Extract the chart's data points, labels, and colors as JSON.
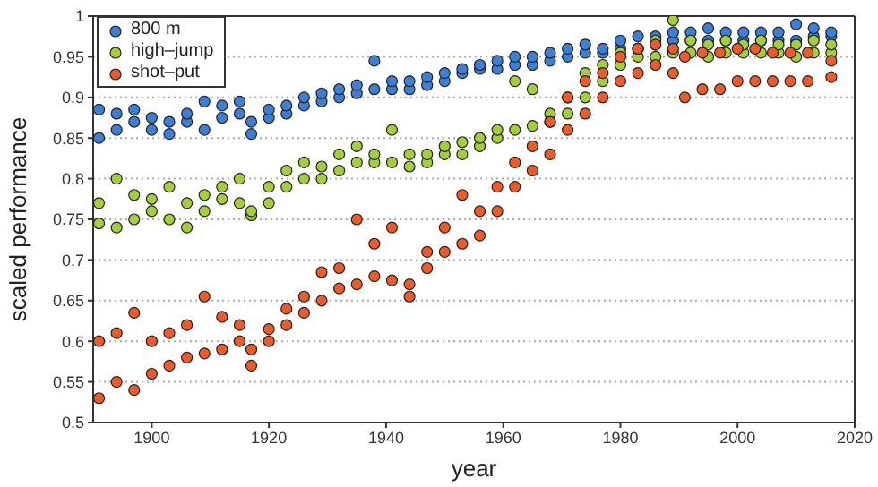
{
  "chart_data": {
    "type": "scatter",
    "xlabel": "year",
    "ylabel": "scaled performance",
    "xlim": [
      1890,
      2020
    ],
    "xticks": [
      1900,
      1920,
      1940,
      1960,
      1980,
      2000,
      2020
    ],
    "ylim": [
      0.5,
      1
    ],
    "yticks": [
      0.5,
      0.55,
      0.6,
      0.65,
      0.7,
      0.75,
      0.8,
      0.85,
      0.9,
      0.95,
      1
    ],
    "grid": "y",
    "legend": "top left",
    "marker": "circle",
    "series": [
      {
        "name": "800 m",
        "color": "#3d7fd6",
        "x": [
          1891,
          1891,
          1894,
          1894,
          1897,
          1897,
          1900,
          1900,
          1903,
          1903,
          1906,
          1906,
          1909,
          1909,
          1912,
          1912,
          1915,
          1915,
          1917,
          1917,
          1920,
          1920,
          1923,
          1923,
          1926,
          1926,
          1929,
          1929,
          1932,
          1932,
          1935,
          1935,
          1938,
          1938,
          1941,
          1941,
          1944,
          1944,
          1947,
          1947,
          1950,
          1950,
          1953,
          1953,
          1956,
          1956,
          1959,
          1959,
          1962,
          1962,
          1965,
          1965,
          1968,
          1968,
          1971,
          1971,
          1974,
          1974,
          1977,
          1977,
          1980,
          1980,
          1983,
          1983,
          1986,
          1986,
          1989,
          1989,
          1992,
          1992,
          1995,
          1995,
          1998,
          1998,
          2001,
          2001,
          2004,
          2004,
          2007,
          2007,
          2010,
          2010,
          2013,
          2013,
          2016,
          2016
        ],
        "values": [
          0.85,
          0.885,
          0.86,
          0.88,
          0.87,
          0.885,
          0.86,
          0.875,
          0.855,
          0.87,
          0.87,
          0.88,
          0.86,
          0.895,
          0.875,
          0.89,
          0.88,
          0.895,
          0.855,
          0.87,
          0.875,
          0.885,
          0.88,
          0.89,
          0.89,
          0.9,
          0.895,
          0.905,
          0.9,
          0.91,
          0.905,
          0.915,
          0.91,
          0.945,
          0.91,
          0.92,
          0.91,
          0.92,
          0.915,
          0.925,
          0.92,
          0.93,
          0.93,
          0.935,
          0.935,
          0.94,
          0.935,
          0.945,
          0.94,
          0.95,
          0.94,
          0.95,
          0.945,
          0.955,
          0.95,
          0.96,
          0.955,
          0.965,
          0.955,
          0.96,
          0.96,
          0.97,
          0.96,
          0.975,
          0.965,
          0.975,
          0.97,
          0.98,
          0.97,
          0.98,
          0.97,
          0.985,
          0.97,
          0.98,
          0.97,
          0.98,
          0.97,
          0.98,
          0.97,
          0.98,
          0.97,
          0.99,
          0.975,
          0.985,
          0.975,
          0.98
        ]
      },
      {
        "name": "high–jump",
        "color": "#a3cf3a",
        "x": [
          1891,
          1891,
          1894,
          1894,
          1897,
          1897,
          1900,
          1900,
          1903,
          1903,
          1906,
          1906,
          1909,
          1909,
          1912,
          1912,
          1915,
          1915,
          1917,
          1917,
          1920,
          1920,
          1923,
          1923,
          1926,
          1926,
          1929,
          1929,
          1932,
          1932,
          1935,
          1935,
          1938,
          1938,
          1941,
          1941,
          1944,
          1944,
          1947,
          1947,
          1950,
          1950,
          1953,
          1953,
          1956,
          1956,
          1959,
          1959,
          1962,
          1962,
          1965,
          1965,
          1968,
          1968,
          1971,
          1971,
          1974,
          1974,
          1977,
          1977,
          1980,
          1980,
          1983,
          1983,
          1986,
          1986,
          1989,
          1989,
          1992,
          1992,
          1995,
          1995,
          1998,
          1998,
          2001,
          2001,
          2004,
          2004,
          2007,
          2007,
          2010,
          2010,
          2013,
          2013,
          2016,
          2016
        ],
        "values": [
          0.745,
          0.77,
          0.74,
          0.8,
          0.75,
          0.78,
          0.76,
          0.775,
          0.75,
          0.79,
          0.74,
          0.77,
          0.76,
          0.78,
          0.775,
          0.79,
          0.77,
          0.8,
          0.755,
          0.76,
          0.77,
          0.79,
          0.79,
          0.81,
          0.8,
          0.82,
          0.8,
          0.815,
          0.81,
          0.83,
          0.82,
          0.84,
          0.82,
          0.83,
          0.82,
          0.86,
          0.815,
          0.83,
          0.82,
          0.83,
          0.83,
          0.84,
          0.83,
          0.845,
          0.84,
          0.85,
          0.85,
          0.86,
          0.86,
          0.92,
          0.865,
          0.91,
          0.87,
          0.88,
          0.88,
          0.9,
          0.9,
          0.93,
          0.92,
          0.94,
          0.94,
          0.955,
          0.95,
          0.96,
          0.95,
          0.97,
          0.955,
          0.995,
          0.955,
          0.97,
          0.95,
          0.965,
          0.955,
          0.97,
          0.955,
          0.965,
          0.955,
          0.97,
          0.955,
          0.965,
          0.95,
          0.965,
          0.955,
          0.97,
          0.955,
          0.965
        ]
      },
      {
        "name": "shot–put",
        "color": "#ef5a2a",
        "x": [
          1891,
          1891,
          1894,
          1894,
          1897,
          1897,
          1900,
          1900,
          1903,
          1903,
          1906,
          1906,
          1909,
          1909,
          1912,
          1912,
          1915,
          1915,
          1917,
          1917,
          1920,
          1920,
          1923,
          1923,
          1926,
          1926,
          1929,
          1929,
          1932,
          1932,
          1935,
          1935,
          1938,
          1938,
          1941,
          1941,
          1944,
          1944,
          1947,
          1947,
          1950,
          1950,
          1953,
          1953,
          1956,
          1956,
          1959,
          1959,
          1962,
          1962,
          1965,
          1965,
          1968,
          1968,
          1971,
          1971,
          1974,
          1974,
          1977,
          1977,
          1980,
          1980,
          1983,
          1983,
          1986,
          1986,
          1989,
          1989,
          1991,
          1991,
          1994,
          1994,
          1997,
          1997,
          2000,
          2000,
          2003,
          2003,
          2006,
          2006,
          2009,
          2009,
          2012,
          2012,
          2016,
          2016
        ],
        "values": [
          0.53,
          0.6,
          0.55,
          0.61,
          0.54,
          0.635,
          0.56,
          0.6,
          0.57,
          0.61,
          0.58,
          0.62,
          0.585,
          0.655,
          0.59,
          0.63,
          0.6,
          0.62,
          0.57,
          0.59,
          0.6,
          0.615,
          0.62,
          0.64,
          0.635,
          0.655,
          0.65,
          0.685,
          0.665,
          0.69,
          0.67,
          0.75,
          0.68,
          0.72,
          0.675,
          0.74,
          0.655,
          0.67,
          0.69,
          0.71,
          0.71,
          0.74,
          0.72,
          0.78,
          0.73,
          0.76,
          0.76,
          0.79,
          0.79,
          0.82,
          0.81,
          0.84,
          0.83,
          0.87,
          0.86,
          0.9,
          0.88,
          0.92,
          0.9,
          0.93,
          0.92,
          0.95,
          0.93,
          0.96,
          0.94,
          0.965,
          0.93,
          0.96,
          0.9,
          0.95,
          0.91,
          0.955,
          0.91,
          0.955,
          0.92,
          0.96,
          0.92,
          0.96,
          0.92,
          0.955,
          0.92,
          0.955,
          0.92,
          0.955,
          0.925,
          0.945
        ]
      }
    ]
  }
}
